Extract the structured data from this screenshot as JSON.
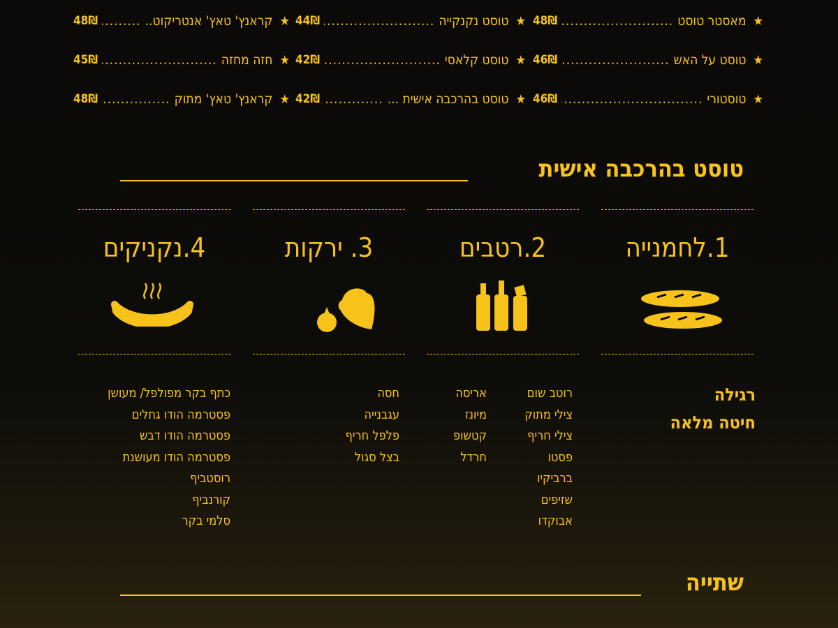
{
  "menu_items": [
    [
      {
        "name": "מאסטר טוסט",
        "price": "48₪"
      },
      {
        "name": "טוסט על האש",
        "price": "46₪"
      },
      {
        "name": "טוסטורי",
        "price": "46₪"
      }
    ],
    [
      {
        "name": "טוסט נקנקייה",
        "price": "44₪"
      },
      {
        "name": "טוסט קלאסי",
        "price": "42₪"
      },
      {
        "name": "טוסט בהרכבה אישית ...",
        "price": "42₪"
      }
    ],
    [
      {
        "name": "קראנץ' טאץ' אנטריקוט..",
        "price": "48₪"
      },
      {
        "name": "חזה מחזה",
        "price": "45₪"
      },
      {
        "name": "קראנץ' טאץ' מתוק",
        "price": "48₪"
      }
    ]
  ],
  "dots": "..........................................",
  "star_icon": "★",
  "custom_section": {
    "title": "טוסט בהרכבה אישית",
    "categories": [
      {
        "label": "1.לחמנייה",
        "icon": "bread-icon"
      },
      {
        "label": "2.רטבים",
        "icon": "sauce-bottles-icon"
      },
      {
        "label": "3. ירקות",
        "icon": "vegetables-icon"
      },
      {
        "label": "4.נקניקים",
        "icon": "sausage-icon"
      }
    ],
    "bread": [
      "רגילה",
      "חיטה מלאה"
    ],
    "sauces_a": [
      "רוטב שום",
      "צילי מתוק",
      "צילי חריף",
      "פסטו",
      "ברביקיו",
      "שזיפים",
      "אבוקדו"
    ],
    "sauces_b": [
      "אריסה",
      "מיונז",
      "קטשופ",
      "חרדל"
    ],
    "vegetables": [
      "חסה",
      "עגבנייה",
      "פלפל חריף",
      "בצל סגול"
    ],
    "cold_cuts": [
      "כתף בקר מפולפל/ מעושן",
      "פסטרמה הודו גחלים",
      "פסטרמה הודו דבש",
      "פסטרמה הודו מעושנת",
      "רוסטביף",
      "קורנביף",
      "סלמי בקר"
    ]
  },
  "drinks_section": {
    "title": "שתייה"
  },
  "colors": {
    "accent": "#f7c21a",
    "background": "#0b0a08"
  }
}
